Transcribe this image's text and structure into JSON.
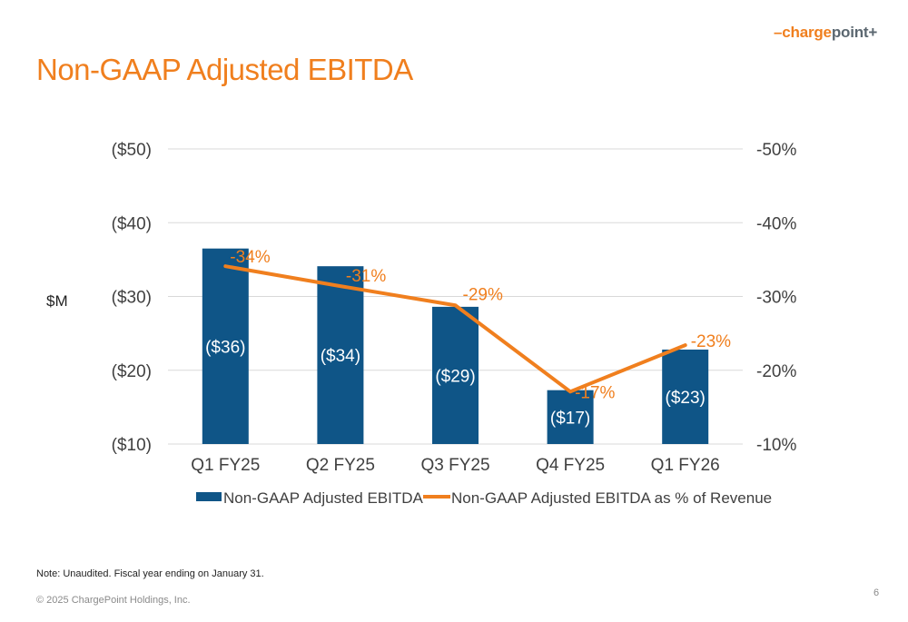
{
  "header": {
    "logo": {
      "dash": "–",
      "charge": "charge",
      "point": "point",
      "plus": "+"
    },
    "title": "Non-GAAP Adjusted EBITDA"
  },
  "footer": {
    "note": "Note: Unaudited. Fiscal year ending on January 31.",
    "copyright": "© 2025 ChargePoint Holdings, Inc.",
    "page_number": "6"
  },
  "colors": {
    "accent": "#f07f1e",
    "bar": "#0f5587",
    "grid": "#d9d9d9",
    "text": "#404040"
  },
  "chart_data": {
    "type": "bar",
    "categories": [
      "Q1 FY25",
      "Q2 FY25",
      "Q3 FY25",
      "Q4 FY25",
      "Q1 FY26"
    ],
    "ylabel": "$M",
    "ylim": [
      -10,
      -50
    ],
    "y_ticks": [
      {
        "value": -10,
        "label": "($10)"
      },
      {
        "value": -20,
        "label": "($20)"
      },
      {
        "value": -30,
        "label": "($30)"
      },
      {
        "value": -40,
        "label": "($40)"
      },
      {
        "value": -50,
        "label": "($50)"
      }
    ],
    "y2lim": [
      -10,
      -50
    ],
    "y2_ticks": [
      {
        "value": -10,
        "label": "-10%"
      },
      {
        "value": -20,
        "label": "-20%"
      },
      {
        "value": -30,
        "label": "-30%"
      },
      {
        "value": -40,
        "label": "-40%"
      },
      {
        "value": -50,
        "label": "-50%"
      }
    ],
    "grid": true,
    "legend_position": "bottom",
    "series": [
      {
        "name": "Non-GAAP Adjusted EBITDA",
        "type": "bar",
        "axis": "left",
        "values": [
          -36.5,
          -34.1,
          -28.6,
          -17.3,
          -22.8
        ],
        "labels": [
          "($36)",
          "($34)",
          "($29)",
          "($17)",
          "($23)"
        ]
      },
      {
        "name": "Non-GAAP Adjusted EBITDA as % of Revenue",
        "type": "line",
        "axis": "right",
        "values": [
          -34.1,
          -31.4,
          -28.8,
          -17.1,
          -23.4
        ],
        "labels": [
          "-34%",
          "-31%",
          "-29%",
          "-17%",
          "-23%"
        ]
      }
    ]
  }
}
